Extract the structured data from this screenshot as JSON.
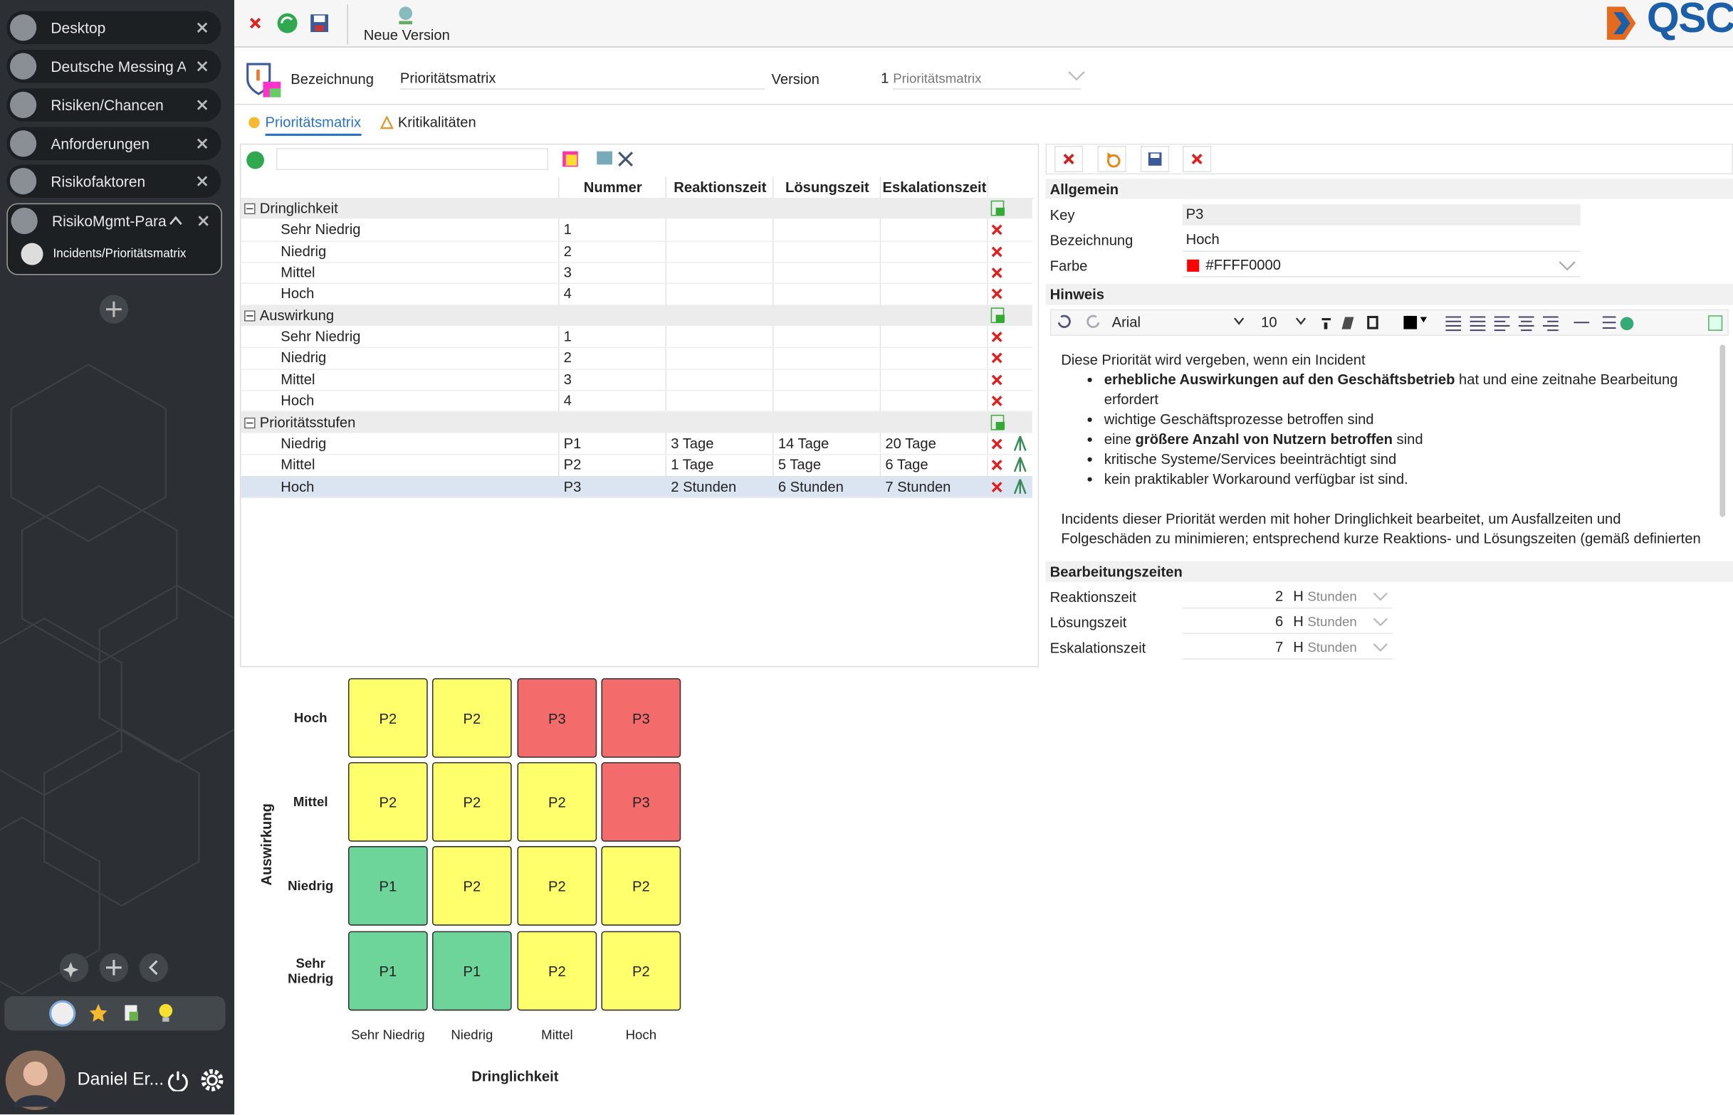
{
  "sidebar": {
    "tabs": [
      "Desktop",
      "Deutsche Messing AG",
      "Risiken/Chancen",
      "Anforderungen",
      "Risikofaktoren",
      "RisikoMgmt-Para"
    ],
    "subtab": "Incidents/Prioritätsmatrix",
    "user": "Daniel Er..."
  },
  "toolbar": {
    "new_version": "Neue Version",
    "logo": "QSC"
  },
  "header": {
    "label": "Bezeichnung",
    "value": "Prioritätsmatrix",
    "version_label": "Version",
    "version_number": "1",
    "version_name": "Prioritätsmatrix"
  },
  "tabs": [
    "Prioritätsmatrix",
    "Kritikalitäten"
  ],
  "table": {
    "columns": [
      "Nummer",
      "Reaktionszeit",
      "Lösungszeit",
      "Eskalationszeit"
    ],
    "groups": [
      {
        "name": "Dringlichkeit",
        "rows": [
          {
            "name": "Sehr Niedrig",
            "cells": [
              "1",
              null,
              null,
              null
            ]
          },
          {
            "name": "Niedrig",
            "cells": [
              "2",
              null,
              null,
              null
            ]
          },
          {
            "name": "Mittel",
            "cells": [
              "3",
              null,
              null,
              null
            ]
          },
          {
            "name": "Hoch",
            "cells": [
              "4",
              null,
              null,
              null
            ]
          }
        ]
      },
      {
        "name": "Auswirkung",
        "rows": [
          {
            "name": "Sehr Niedrig",
            "cells": [
              "1",
              null,
              null,
              null
            ]
          },
          {
            "name": "Niedrig",
            "cells": [
              "2",
              null,
              null,
              null
            ]
          },
          {
            "name": "Mittel",
            "cells": [
              "3",
              null,
              null,
              null
            ]
          },
          {
            "name": "Hoch",
            "cells": [
              "4",
              null,
              null,
              null
            ]
          }
        ]
      },
      {
        "name": "Prioritätsstufen",
        "rows": [
          {
            "name": "Niedrig",
            "cells": [
              "P1",
              "3 Tage",
              "14 Tage",
              "20 Tage"
            ]
          },
          {
            "name": "Mittel",
            "cells": [
              "P2",
              "1 Tage",
              "5 Tage",
              "6 Tage"
            ]
          },
          {
            "name": "Hoch",
            "cells": [
              "P3",
              "2 Stunden",
              "6 Stunden",
              "7 Stunden"
            ],
            "selected": true
          }
        ]
      }
    ]
  },
  "detail": {
    "allgemein": {
      "title": "Allgemein",
      "fields": [
        {
          "label": "Key",
          "value": "P3"
        },
        {
          "label": "Bezeichnung",
          "value": "Hoch"
        },
        {
          "label": "Farbe",
          "value": "#FFFF0000"
        }
      ]
    },
    "hinweis": {
      "title": "Hinweis",
      "font": "Arial",
      "size": "10",
      "intro": "Diese Priorität wird vergeben, wenn ein Incident",
      "bullets": [
        [
          {
            "text": "erhebliche Auswirkungen auf den Geschäftsbetrieb",
            "bold": true
          },
          {
            "text": " hat und eine zeitnahe Bearbeitung erfordert",
            "bold": false
          }
        ],
        [
          {
            "text": "wichtige Geschäftsprozesse betroffen sind",
            "bold": false
          }
        ],
        [
          {
            "text": "eine ",
            "bold": false
          },
          {
            "text": "größere Anzahl von Nutzern betroffen",
            "bold": true
          },
          {
            "text": " sind",
            "bold": false
          }
        ],
        [
          {
            "text": "kritische Systeme/Services beeinträchtigt sind",
            "bold": false
          }
        ],
        [
          {
            "text": "kein praktikabler Workaround verfügbar ist sind.",
            "bold": false
          }
        ]
      ],
      "outro": "Incidents dieser Priorität werden mit hoher Dringlichkeit bearbeitet, um Ausfallzeiten und Folgeschäden zu minimieren; entsprechend kurze Reaktions- und Lösungszeiten (gemäß definierten"
    },
    "zeiten": {
      "title": "Bearbeitungszeiten",
      "rows": [
        {
          "label": "Reaktionszeit",
          "value": 2,
          "unit": "H",
          "unit_name": "Stunden"
        },
        {
          "label": "Lösungszeit",
          "value": 6,
          "unit": "H",
          "unit_name": "Stunden"
        },
        {
          "label": "Eskalationszeit",
          "value": 7,
          "unit": "H",
          "unit_name": "Stunden"
        }
      ]
    }
  },
  "matrix": {
    "y_label": "Auswirkung",
    "x_label": "Dringlichkeit",
    "row_labels": [
      "Hoch",
      "Mittel",
      "Niedrig",
      "Sehr Niedrig"
    ],
    "col_labels": [
      "Sehr Niedrig",
      "Niedrig",
      "Mittel",
      "Hoch"
    ],
    "cells": [
      [
        "P2",
        "P2",
        "P3",
        "P3"
      ],
      [
        "P2",
        "P2",
        "P2",
        "P3"
      ],
      [
        "P1",
        "P2",
        "P2",
        "P2"
      ],
      [
        "P1",
        "P1",
        "P2",
        "P2"
      ]
    ],
    "colors": {
      "P1": "#6dd49a",
      "P2": "#ffff6b",
      "P3": "#f36b6b"
    }
  }
}
